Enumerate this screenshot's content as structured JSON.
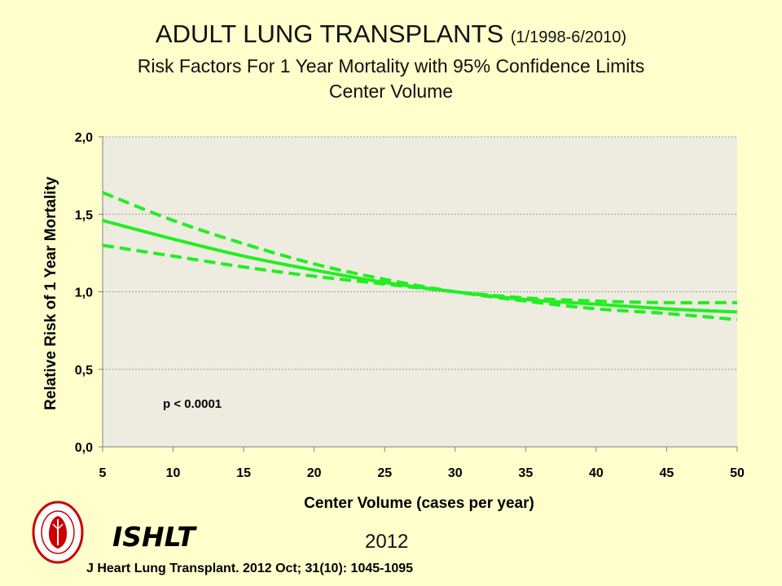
{
  "title": {
    "main": "ADULT LUNG TRANSPLANTS",
    "period": "(1/1998-6/2010)",
    "line2": "Risk Factors For 1 Year Mortality with 95% Confidence Limits",
    "line3": "Center Volume"
  },
  "footer": {
    "org": "ISHLT",
    "year": "2012",
    "citation": "J Heart Lung Transplant. 2012 Oct; 31(10): 1045-1095"
  },
  "colors": {
    "line": "#22ee22",
    "plot_bg": "#eeece1",
    "grid": "#999999",
    "logo": "#cc0000"
  },
  "chart_data": {
    "type": "line",
    "xlabel": "Center Volume (cases per year)",
    "ylabel": "Relative Risk of 1 Year Mortality",
    "xlim": [
      5,
      50
    ],
    "ylim": [
      0,
      2
    ],
    "x_ticks": [
      "5",
      "10",
      "15",
      "20",
      "25",
      "30",
      "35",
      "40",
      "45",
      "50"
    ],
    "y_ticks": [
      "0,0",
      "0,5",
      "1,0",
      "1,5",
      "2,0"
    ],
    "grid": "horizontal",
    "annotation": "p < 0.0001",
    "x": [
      5,
      10,
      15,
      20,
      25,
      30,
      35,
      40,
      45,
      50
    ],
    "series": [
      {
        "style": "solid",
        "values": [
          1.46,
          1.34,
          1.23,
          1.14,
          1.06,
          1.0,
          0.95,
          0.92,
          0.89,
          0.87
        ]
      },
      {
        "style": "dashed",
        "values": [
          1.64,
          1.46,
          1.31,
          1.18,
          1.08,
          1.0,
          0.94,
          0.89,
          0.86,
          0.82
        ]
      },
      {
        "style": "dashed",
        "values": [
          1.3,
          1.23,
          1.16,
          1.1,
          1.05,
          1.0,
          0.96,
          0.94,
          0.93,
          0.93
        ]
      }
    ]
  }
}
